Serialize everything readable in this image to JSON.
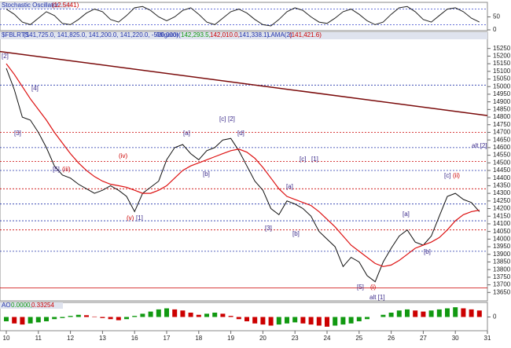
{
  "chart_data": [
    {
      "type": "line",
      "title": "Stochastic Oscillator",
      "subtitle": "(12.5441)",
      "ylim": [
        0,
        100
      ],
      "yticks": [
        0,
        50
      ],
      "levels": [
        {
          "value": 20,
          "color": "#3344cc"
        },
        {
          "value": 80,
          "color": "#3344cc"
        }
      ],
      "series": [
        {
          "name": "%K",
          "color": "#222222",
          "values": [
            80,
            60,
            30,
            20,
            45,
            70,
            55,
            25,
            20,
            40,
            65,
            80,
            70,
            40,
            30,
            55,
            85,
            90,
            75,
            50,
            35,
            50,
            75,
            85,
            60,
            30,
            20,
            45,
            70,
            80,
            65,
            40,
            20,
            15,
            40,
            70,
            85,
            75,
            50,
            30,
            25,
            45,
            70,
            80,
            60,
            35,
            20,
            30,
            60,
            85,
            90,
            70,
            40,
            30,
            55,
            80,
            85,
            70,
            45,
            30,
            null
          ]
        }
      ]
    },
    {
      "type": "line",
      "title": "$FBLRTS",
      "subtitle": "(141,725.0, 141,825.0, 141,200.0, 141,220.0, -520.000)",
      "indicator": "Alligator",
      "indicator_values": [
        "142,293.5,",
        "142,010.0,",
        "141,338.1)"
      ],
      "indicator_open": "(",
      "lama": "LAMA(2)",
      "lama_value": "(141,421.6)",
      "ylim": [
        13600,
        15300
      ],
      "yticks": [
        15250,
        15200,
        15150,
        15100,
        15050,
        15000,
        14950,
        14900,
        14850,
        14800,
        14750,
        14700,
        14650,
        14600,
        14550,
        14500,
        14450,
        14400,
        14350,
        14300,
        14250,
        14200,
        14150,
        14100,
        14050,
        14000,
        13950,
        13900,
        13850,
        13800,
        13750,
        13700,
        13650
      ],
      "categories": [
        "10",
        null,
        null,
        null,
        "11",
        null,
        null,
        null,
        "12",
        null,
        null,
        null,
        "13",
        null,
        null,
        null,
        "16",
        null,
        null,
        null,
        "17",
        null,
        null,
        null,
        "18",
        null,
        null,
        null,
        "19",
        null,
        null,
        null,
        "20",
        null,
        null,
        null,
        "23",
        null,
        null,
        null,
        "24",
        null,
        null,
        null,
        "25",
        null,
        null,
        null,
        "26",
        null,
        null,
        null,
        "27",
        null,
        null,
        null,
        "30",
        null,
        null,
        null,
        "31"
      ],
      "series": [
        {
          "name": "Price",
          "color": "#111111",
          "values": [
            15120,
            14980,
            14800,
            14780,
            14700,
            14600,
            14480,
            14420,
            14400,
            14360,
            14330,
            14300,
            14320,
            14350,
            14320,
            14280,
            14180,
            14300,
            14340,
            14380,
            14520,
            14600,
            14620,
            14560,
            14520,
            14580,
            14600,
            14650,
            14660,
            14580,
            14480,
            14380,
            14320,
            14200,
            14160,
            14250,
            14230,
            14200,
            14150,
            14050,
            14000,
            13950,
            13820,
            13880,
            13850,
            13760,
            13720,
            13850,
            13940,
            14020,
            14060,
            13980,
            13960,
            14020,
            14150,
            14280,
            14300,
            14260,
            14240,
            14180,
            null
          ]
        },
        {
          "name": "Alligator",
          "color": "#dd1111",
          "values": [
            15150,
            15080,
            15000,
            14920,
            14850,
            14780,
            14700,
            14630,
            14560,
            14500,
            14450,
            14410,
            14380,
            14360,
            14350,
            14340,
            14320,
            14300,
            14300,
            14320,
            14350,
            14400,
            14450,
            14480,
            14500,
            14520,
            14540,
            14560,
            14580,
            14590,
            14570,
            14530,
            14470,
            14400,
            14330,
            14280,
            14260,
            14240,
            14220,
            14180,
            14130,
            14080,
            14020,
            13960,
            13920,
            13880,
            13840,
            13820,
            13830,
            13860,
            13900,
            13940,
            13960,
            13980,
            14010,
            14060,
            14120,
            14160,
            14180,
            14190,
            null
          ]
        }
      ],
      "levels": [
        {
          "value": 14700,
          "color": "#cc0000"
        },
        {
          "value": 14510,
          "color": "#cc0000"
        },
        {
          "value": 14330,
          "color": "#cc0000"
        },
        {
          "value": 14060,
          "color": "#cc0000"
        },
        {
          "value": 13680,
          "color": "#cc0000"
        },
        {
          "value": 15010,
          "color": "#2233aa"
        },
        {
          "value": 14600,
          "color": "#2233aa"
        },
        {
          "value": 14450,
          "color": "#2233aa"
        },
        {
          "value": 14230,
          "color": "#2233aa"
        },
        {
          "value": 14120,
          "color": "#2233aa"
        },
        {
          "value": 13920,
          "color": "#2233aa"
        }
      ],
      "trendline": [
        15230,
        14810
      ],
      "trendline_color": "#7a0a0a",
      "annotations": [
        "[2]",
        "[4]",
        "[3]",
        "[5]",
        "(iii)",
        "(iv)",
        "(v)",
        "[1]",
        "[a]",
        "[c]",
        "[2]",
        "[b]",
        "[d]",
        "[a]",
        "[c]",
        "[1]",
        "[3]",
        "[b]",
        "[5]",
        "(i)",
        "alt [1]",
        "[a]",
        "[b]",
        "[c]",
        "(ii)",
        "alt [2]"
      ]
    },
    {
      "type": "bar",
      "title": "AO",
      "subtitle": "0.0000,",
      "extra": "0.33254",
      "ylim": [
        -0.6,
        0.6
      ],
      "yticks": [
        0
      ],
      "values": [
        -0.2,
        -0.3,
        -0.35,
        -0.3,
        -0.25,
        -0.2,
        -0.1,
        -0.05,
        0.05,
        0.1,
        0.08,
        0.02,
        -0.05,
        -0.1,
        -0.15,
        -0.1,
        0.05,
        0.15,
        0.25,
        0.35,
        0.4,
        0.35,
        0.3,
        0.2,
        0.1,
        0.15,
        0.2,
        0.15,
        0.05,
        -0.1,
        -0.2,
        -0.3,
        -0.35,
        -0.4,
        -0.35,
        -0.3,
        -0.25,
        -0.3,
        -0.35,
        -0.4,
        -0.45,
        -0.4,
        -0.35,
        -0.3,
        -0.2,
        -0.1,
        0.0,
        0.1,
        0.2,
        0.3,
        0.35,
        0.3,
        0.25,
        0.3,
        0.35,
        0.4,
        0.45,
        0.4,
        0.35,
        0.3,
        null
      ]
    }
  ]
}
